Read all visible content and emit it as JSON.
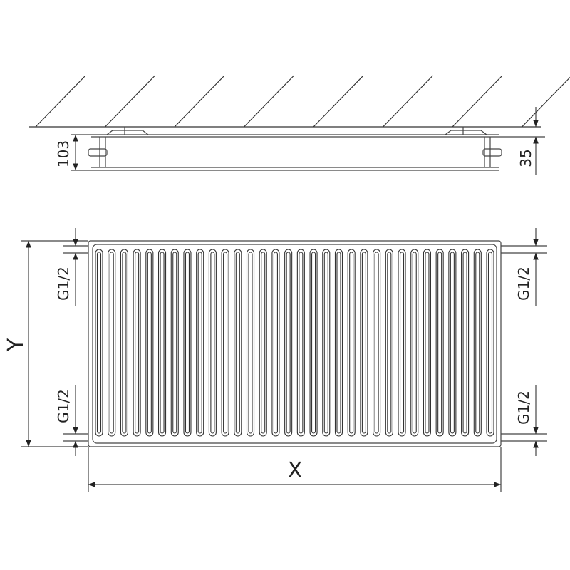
{
  "side_view": {
    "height_label": "103",
    "offset_label": "35"
  },
  "front_view": {
    "width_label": "X",
    "height_label": "Y",
    "connections": [
      "G1/2",
      "G1/2",
      "G1/2",
      "G1/2"
    ],
    "fin_count": 32
  },
  "colors": {
    "line": "#333333",
    "fill": "#ffffff"
  }
}
